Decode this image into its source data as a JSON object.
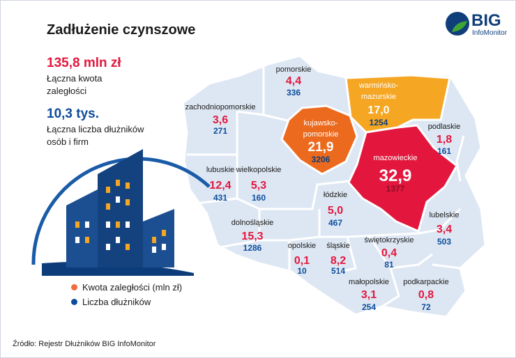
{
  "header": {
    "title": "Zadłużenie czynszowe"
  },
  "summary": {
    "total_amount_value": "135,8 mln zł",
    "total_amount_label_1": "Łączna kwota",
    "total_amount_label_2": "zaległości",
    "total_debtors_value": "10,3 tys.",
    "total_debtors_label_1": "Łączna liczba dłużników",
    "total_debtors_label_2": "osób i firm"
  },
  "legend": {
    "amount_label": "Kwota zaległości (mln zł)",
    "count_label": "Liczba dłużników"
  },
  "logo": {
    "name": "BIG",
    "subtitle": "InfoMonitor"
  },
  "source": "Źródło: Rejestr Dłużników BIG InfoMonitor",
  "colors": {
    "amount": "#e3173e",
    "count": "#0c4c9c",
    "map_fill": "#dde7f3",
    "highlight_red": "#e3173e",
    "highlight_orange_dark": "#ec6a1e",
    "highlight_orange": "#f5a623",
    "legend_amount_dot": "#f26a3d"
  },
  "chart_data": {
    "type": "choropleth-map",
    "unit_amount": "mln zł",
    "unit_count": "dłużników",
    "regions": [
      {
        "name": "pomorskie",
        "amount": "4,4",
        "count": "336"
      },
      {
        "name": "warmińsko-mazurskie",
        "amount": "17,0",
        "count": "1254"
      },
      {
        "name": "zachodniopomorskie",
        "amount": "3,6",
        "count": "271"
      },
      {
        "name": "kujawsko-pomorskie",
        "amount": "21,9",
        "count": "3206"
      },
      {
        "name": "podlaskie",
        "amount": "1,8",
        "count": "161"
      },
      {
        "name": "lubuskie",
        "amount": "12,4",
        "count": "431"
      },
      {
        "name": "wielkopolskie",
        "amount": "5,3",
        "count": "160"
      },
      {
        "name": "mazowieckie",
        "amount": "32,9",
        "count": "1377"
      },
      {
        "name": "łódzkie",
        "amount": "5,0",
        "count": "467"
      },
      {
        "name": "lubelskie",
        "amount": "3,4",
        "count": "503"
      },
      {
        "name": "dolnośląskie",
        "amount": "15,3",
        "count": "1286"
      },
      {
        "name": "opolskie",
        "amount": "0,1",
        "count": "10"
      },
      {
        "name": "śląskie",
        "amount": "8,2",
        "count": "514"
      },
      {
        "name": "świętokrzyskie",
        "amount": "0,4",
        "count": "81"
      },
      {
        "name": "małopolskie",
        "amount": "3,1",
        "count": "254"
      },
      {
        "name": "podkarpackie",
        "amount": "0,8",
        "count": "72"
      }
    ]
  }
}
